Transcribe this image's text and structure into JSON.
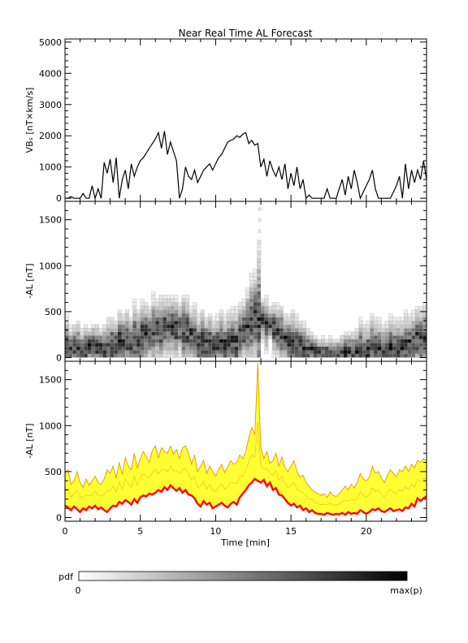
{
  "figure": {
    "title": "Near Real Time AL Forecast"
  },
  "chart_data": [
    {
      "type": "line",
      "panel": "vbs",
      "ylabel": "VBₛ [nT×km/s]",
      "ylim": [
        -100,
        5100
      ],
      "yticks": [
        0,
        1000,
        2000,
        3000,
        4000,
        5000
      ],
      "xlim": [
        0,
        24
      ],
      "series": [
        {
          "color": "#000000",
          "x": [
            0,
            0.2,
            0.4,
            0.6,
            0.8,
            1.0,
            1.2,
            1.4,
            1.6,
            1.8,
            2.0,
            2.2,
            2.4,
            2.6,
            2.8,
            3.0,
            3.2,
            3.4,
            3.6,
            3.8,
            4.0,
            4.2,
            4.4,
            4.6,
            4.8,
            5.0,
            5.2,
            5.4,
            5.6,
            5.8,
            6.0,
            6.2,
            6.4,
            6.6,
            6.8,
            7.0,
            7.2,
            7.4,
            7.6,
            7.8,
            8.0,
            8.2,
            8.4,
            8.6,
            8.8,
            9.0,
            9.2,
            9.4,
            9.6,
            9.8,
            10.0,
            10.2,
            10.4,
            10.6,
            10.8,
            11.0,
            11.2,
            11.4,
            11.6,
            11.8,
            12.0,
            12.2,
            12.4,
            12.6,
            12.8,
            13.0,
            13.2,
            13.4,
            13.6,
            13.8,
            14.0,
            14.2,
            14.4,
            14.6,
            14.8,
            15.0,
            15.2,
            15.4,
            15.6,
            15.8,
            16.0,
            16.2,
            16.4,
            16.6,
            16.8,
            17.0,
            17.2,
            17.4,
            17.6,
            17.8,
            18.0,
            18.2,
            18.4,
            18.6,
            18.8,
            19.0,
            19.2,
            19.4,
            19.6,
            19.8,
            20.0,
            20.2,
            20.4,
            20.6,
            20.8,
            21.0,
            21.2,
            21.4,
            21.6,
            21.8,
            22.0,
            22.2,
            22.4,
            22.6,
            22.8,
            23.0,
            23.2,
            23.4,
            23.6,
            23.8,
            24.0
          ],
          "values": [
            0,
            0,
            50,
            0,
            0,
            0,
            150,
            0,
            0,
            400,
            0,
            300,
            0,
            1150,
            800,
            1250,
            500,
            1300,
            0,
            600,
            900,
            300,
            1100,
            700,
            1000,
            1200,
            1300,
            1450,
            1600,
            1750,
            1900,
            2100,
            1600,
            2150,
            1400,
            1800,
            1500,
            1200,
            0,
            300,
            1000,
            700,
            600,
            900,
            500,
            700,
            900,
            1000,
            1100,
            900,
            1100,
            1300,
            1400,
            1600,
            1800,
            1850,
            1900,
            2000,
            1950,
            2050,
            2100,
            1750,
            1850,
            1700,
            1750,
            1000,
            1250,
            700,
            1200,
            900,
            700,
            1000,
            600,
            1100,
            300,
            800,
            400,
            1000,
            300,
            600,
            0,
            100,
            0,
            0,
            0,
            0,
            0,
            300,
            0,
            0,
            0,
            300,
            600,
            100,
            700,
            300,
            900,
            500,
            0,
            200,
            400,
            600,
            900,
            300,
            0,
            0,
            0,
            0,
            0,
            200,
            400,
            700,
            0,
            1100,
            300,
            900,
            500,
            900,
            600,
            1200,
            600
          ]
        }
      ]
    },
    {
      "type": "heatmap",
      "panel": "al_pdf",
      "ylabel": "-AL [nT]",
      "ylim": [
        -40,
        1700
      ],
      "yticks": [
        0,
        500,
        1000,
        1500
      ],
      "xlim": [
        0,
        24
      ],
      "x_bin_width_min": 0.25,
      "y_bin_width_nT": 40,
      "colorbar": {
        "label": "pdf",
        "min_label": "0",
        "max_label": "max(p)"
      }
    },
    {
      "type": "area",
      "panel": "al_forecast",
      "xlabel": "Time [min]",
      "ylabel": "-AL [nT]",
      "ylim": [
        -40,
        1700
      ],
      "yticks": [
        0,
        500,
        1000,
        1500
      ],
      "xlim": [
        0,
        24
      ],
      "xticks": [
        0,
        5,
        10,
        15,
        20
      ],
      "band_color": "#ffff33",
      "band_edge_color": "#e69500",
      "median_color": "#ff0000",
      "x": [
        0,
        0.2,
        0.4,
        0.6,
        0.8,
        1.0,
        1.2,
        1.4,
        1.6,
        1.8,
        2.0,
        2.2,
        2.4,
        2.6,
        2.8,
        3.0,
        3.2,
        3.4,
        3.6,
        3.8,
        4.0,
        4.2,
        4.4,
        4.6,
        4.8,
        5.0,
        5.2,
        5.4,
        5.6,
        5.8,
        6.0,
        6.2,
        6.4,
        6.6,
        6.8,
        7.0,
        7.2,
        7.4,
        7.6,
        7.8,
        8.0,
        8.2,
        8.4,
        8.6,
        8.8,
        9.0,
        9.2,
        9.4,
        9.6,
        9.8,
        10.0,
        10.2,
        10.4,
        10.6,
        10.8,
        11.0,
        11.2,
        11.4,
        11.6,
        11.8,
        12.0,
        12.2,
        12.4,
        12.6,
        12.8,
        13.0,
        13.2,
        13.4,
        13.6,
        13.8,
        14.0,
        14.2,
        14.4,
        14.6,
        14.8,
        15.0,
        15.2,
        15.4,
        15.6,
        15.8,
        16.0,
        16.2,
        16.4,
        16.6,
        16.8,
        17.0,
        17.2,
        17.4,
        17.6,
        17.8,
        18.0,
        18.2,
        18.4,
        18.6,
        18.8,
        19.0,
        19.2,
        19.4,
        19.6,
        19.8,
        20.0,
        20.2,
        20.4,
        20.6,
        20.8,
        21.0,
        21.2,
        21.4,
        21.6,
        21.8,
        22.0,
        22.2,
        22.4,
        22.6,
        22.8,
        23.0,
        23.2,
        23.4,
        23.6,
        23.8,
        24.0
      ],
      "median": [
        130,
        110,
        80,
        120,
        90,
        60,
        100,
        80,
        120,
        100,
        130,
        90,
        110,
        80,
        60,
        100,
        130,
        120,
        170,
        150,
        190,
        170,
        140,
        200,
        160,
        220,
        240,
        230,
        260,
        250,
        270,
        300,
        280,
        330,
        300,
        350,
        320,
        290,
        320,
        270,
        300,
        250,
        240,
        210,
        150,
        120,
        180,
        140,
        160,
        100,
        120,
        140,
        160,
        130,
        110,
        150,
        170,
        140,
        220,
        260,
        300,
        350,
        380,
        420,
        400,
        380,
        410,
        340,
        380,
        300,
        320,
        250,
        240,
        200,
        160,
        130,
        150,
        110,
        130,
        80,
        100,
        60,
        80,
        50,
        40,
        40,
        30,
        50,
        40,
        30,
        40,
        35,
        50,
        30,
        60,
        40,
        50,
        40,
        80,
        60,
        40,
        60,
        90,
        80,
        100,
        70,
        60,
        80,
        100,
        70,
        80,
        90,
        70,
        110,
        100,
        150,
        120,
        210,
        180,
        210,
        230
      ],
      "upper": [
        480,
        520,
        360,
        400,
        500,
        380,
        330,
        420,
        350,
        400,
        450,
        380,
        360,
        420,
        520,
        480,
        560,
        430,
        600,
        470,
        650,
        560,
        520,
        700,
        540,
        640,
        720,
        660,
        600,
        730,
        780,
        650,
        760,
        720,
        700,
        780,
        690,
        740,
        640,
        760,
        780,
        700,
        580,
        680,
        500,
        560,
        620,
        480,
        560,
        500,
        450,
        520,
        580,
        490,
        550,
        620,
        580,
        600,
        680,
        640,
        720,
        870,
        980,
        900,
        1680,
        760,
        640,
        720,
        590,
        620,
        700,
        560,
        660,
        540,
        500,
        560,
        620,
        500,
        440,
        460,
        380,
        340,
        300,
        280,
        260,
        240,
        260,
        220,
        280,
        240,
        230,
        260,
        300,
        340,
        300,
        360,
        320,
        380,
        480,
        420,
        400,
        440,
        560,
        480,
        500,
        430,
        380,
        460,
        520,
        480,
        440,
        520,
        500,
        560,
        500,
        580,
        540,
        620,
        600,
        640,
        620
      ]
    }
  ]
}
